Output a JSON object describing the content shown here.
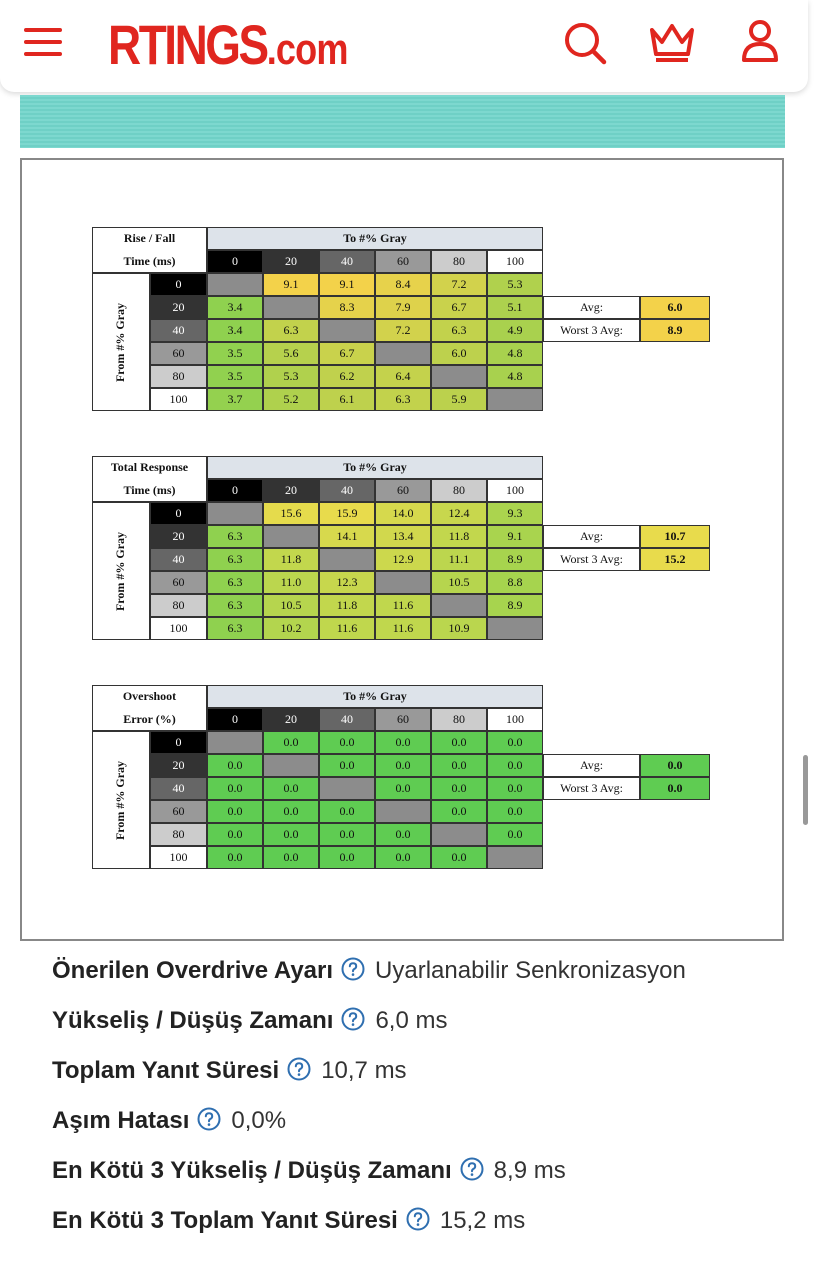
{
  "header": {
    "logo_main": "RTINGS",
    "logo_suffix": ".com"
  },
  "tables": [
    {
      "corner": [
        "Rise / Fall",
        "Time (ms)"
      ],
      "to_label": "To #% Gray",
      "from_label": "From #% Gray",
      "columns": [
        "0",
        "20",
        "40",
        "60",
        "80",
        "100"
      ],
      "rows": [
        {
          "label": "0",
          "cells": [
            null,
            "9.1",
            "9.1",
            "8.4",
            "7.2",
            "5.3"
          ]
        },
        {
          "label": "20",
          "cells": [
            "3.4",
            null,
            "8.3",
            "7.9",
            "6.7",
            "5.1"
          ]
        },
        {
          "label": "40",
          "cells": [
            "3.4",
            "6.3",
            null,
            "7.2",
            "6.3",
            "4.9"
          ]
        },
        {
          "label": "60",
          "cells": [
            "3.5",
            "5.6",
            "6.7",
            null,
            "6.0",
            "4.8"
          ]
        },
        {
          "label": "80",
          "cells": [
            "3.5",
            "5.3",
            "6.2",
            "6.4",
            null,
            "4.8"
          ]
        },
        {
          "label": "100",
          "cells": [
            "3.7",
            "5.2",
            "6.1",
            "6.3",
            "5.9",
            null
          ]
        }
      ],
      "avg_label": "Avg:",
      "avg": "6.0",
      "worst_label": "Worst 3 Avg:",
      "worst": "8.9",
      "color_scale": [
        "#8fd14f",
        "#f3d24a"
      ]
    },
    {
      "corner": [
        "Total Response",
        "Time (ms)"
      ],
      "to_label": "To #% Gray",
      "from_label": "From #% Gray",
      "columns": [
        "0",
        "20",
        "40",
        "60",
        "80",
        "100"
      ],
      "rows": [
        {
          "label": "0",
          "cells": [
            null,
            "15.6",
            "15.9",
            "14.0",
            "12.4",
            "9.3"
          ]
        },
        {
          "label": "20",
          "cells": [
            "6.3",
            null,
            "14.1",
            "13.4",
            "11.8",
            "9.1"
          ]
        },
        {
          "label": "40",
          "cells": [
            "6.3",
            "11.8",
            null,
            "12.9",
            "11.1",
            "8.9"
          ]
        },
        {
          "label": "60",
          "cells": [
            "6.3",
            "11.0",
            "12.3",
            null,
            "10.5",
            "8.8"
          ]
        },
        {
          "label": "80",
          "cells": [
            "6.3",
            "10.5",
            "11.8",
            "11.6",
            null,
            "8.9"
          ]
        },
        {
          "label": "100",
          "cells": [
            "6.3",
            "10.2",
            "11.6",
            "11.6",
            "10.9",
            null
          ]
        }
      ],
      "avg_label": "Avg:",
      "avg": "10.7",
      "worst_label": "Worst 3 Avg:",
      "worst": "15.2",
      "color_scale": [
        "#8fd14f",
        "#e8db4c"
      ]
    },
    {
      "corner": [
        "Overshoot",
        "Error (%)"
      ],
      "to_label": "To #% Gray",
      "from_label": "From #% Gray",
      "columns": [
        "0",
        "20",
        "40",
        "60",
        "80",
        "100"
      ],
      "rows": [
        {
          "label": "0",
          "cells": [
            null,
            "0.0",
            "0.0",
            "0.0",
            "0.0",
            "0.0"
          ]
        },
        {
          "label": "20",
          "cells": [
            "0.0",
            null,
            "0.0",
            "0.0",
            "0.0",
            "0.0"
          ]
        },
        {
          "label": "40",
          "cells": [
            "0.0",
            "0.0",
            null,
            "0.0",
            "0.0",
            "0.0"
          ]
        },
        {
          "label": "60",
          "cells": [
            "0.0",
            "0.0",
            "0.0",
            null,
            "0.0",
            "0.0"
          ]
        },
        {
          "label": "80",
          "cells": [
            "0.0",
            "0.0",
            "0.0",
            "0.0",
            null,
            "0.0"
          ]
        },
        {
          "label": "100",
          "cells": [
            "0.0",
            "0.0",
            "0.0",
            "0.0",
            "0.0",
            null
          ]
        }
      ],
      "avg_label": "Avg:",
      "avg": "0.0",
      "worst_label": "Worst 3 Avg:",
      "worst": "0.0",
      "color_scale": [
        "#5fcc52",
        "#5fcc52"
      ]
    }
  ],
  "shades": [
    "#000000",
    "#333333",
    "#666666",
    "#999999",
    "#cccccc",
    "#ffffff"
  ],
  "specs": [
    {
      "label": "Önerilen Overdrive Ayarı",
      "value": "Uyarlanabilir Senkronizasyon"
    },
    {
      "label": "Yükseliş / Düşüş Zamanı",
      "value": "6,0 ms"
    },
    {
      "label": "Toplam Yanıt Süresi",
      "value": "10,7 ms"
    },
    {
      "label": "Aşım Hatası",
      "value": "0,0%"
    },
    {
      "label": "En Kötü 3 Yükseliş / Düşüş Zamanı",
      "value": "8,9 ms"
    },
    {
      "label": "En Kötü 3 Toplam Yanıt Süresi",
      "value": "15,2 ms"
    }
  ]
}
